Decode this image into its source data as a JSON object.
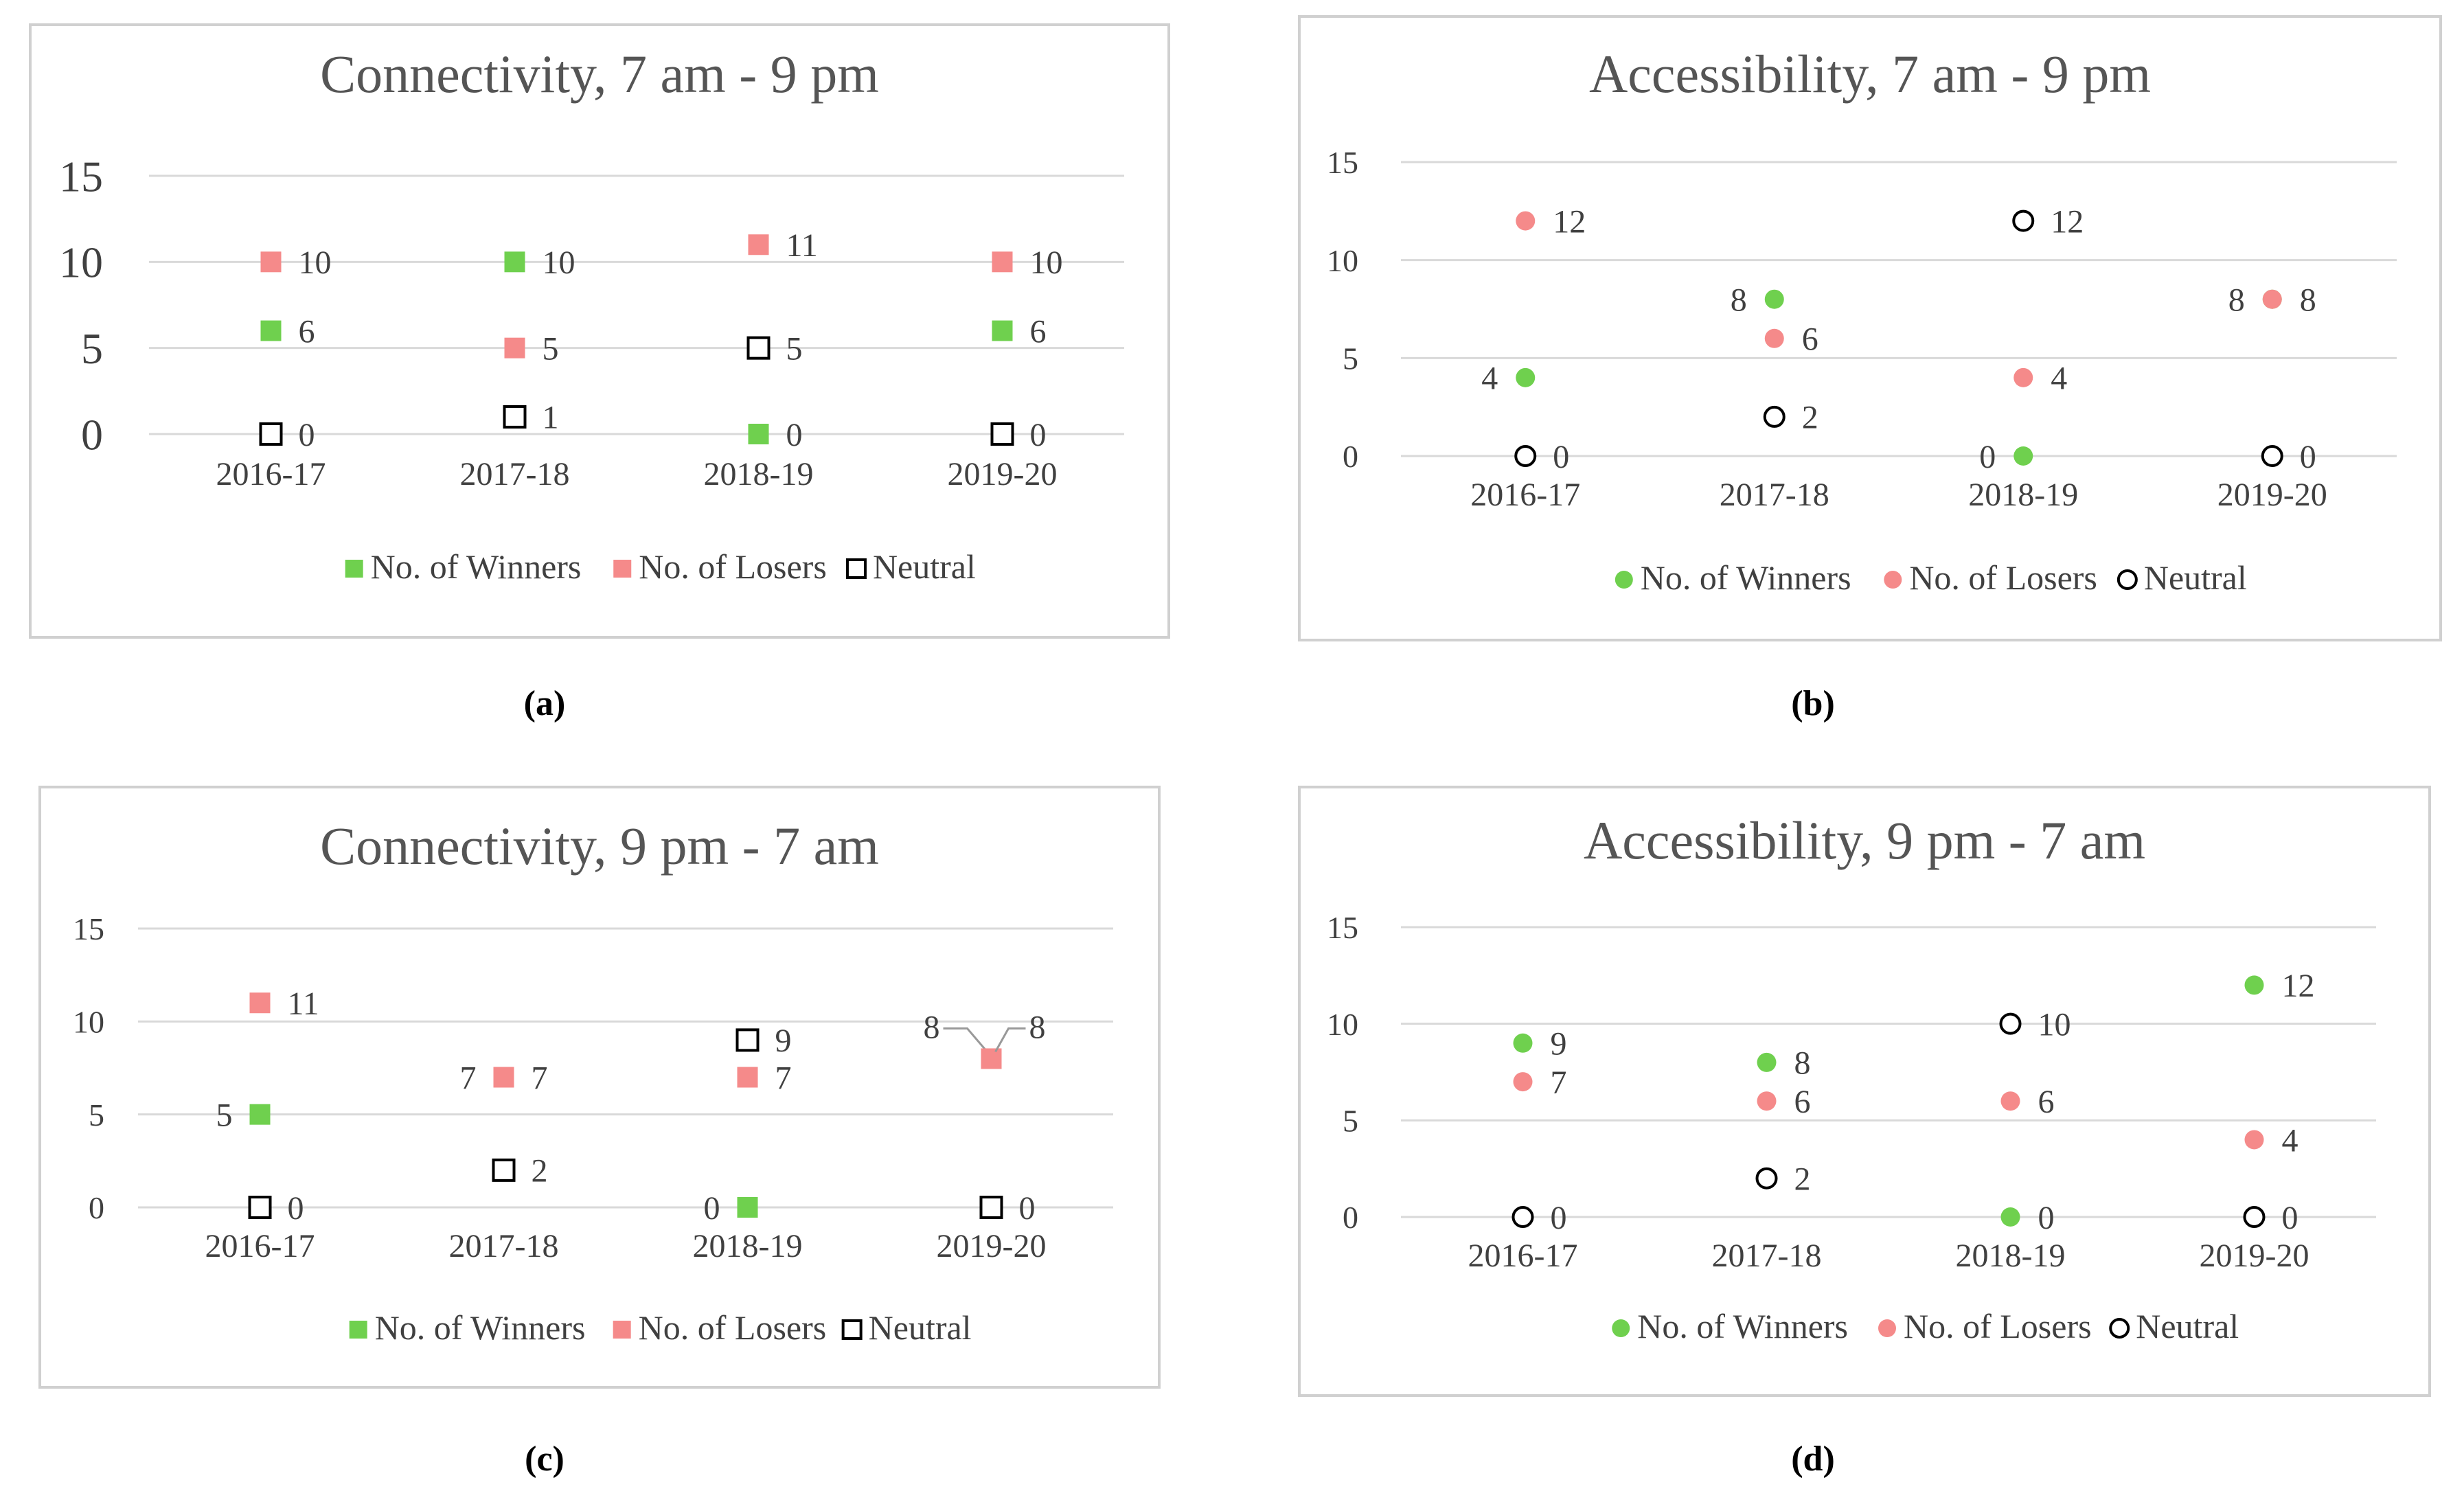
{
  "colors": {
    "winners": "#6fd04e",
    "losers": "#f58a8a",
    "neutral": "#000000",
    "grid": "#d9d9d9",
    "frame": "#d0d0d0",
    "title": "#555555",
    "text": "#404040"
  },
  "captions": [
    "(a)",
    "(b)",
    "(c)",
    "(d)"
  ],
  "chart_data": [
    {
      "type": "scatter",
      "marker": "square",
      "title": "Connectivity, 7 am - 9 pm",
      "categories": [
        "2016-17",
        "2017-18",
        "2018-19",
        "2019-20"
      ],
      "y_ticks": [
        "0",
        "5",
        "10",
        "15"
      ],
      "ylim": [
        0,
        15
      ],
      "grid": true,
      "legend_position": "bottom",
      "series": [
        {
          "name": "No. of Winners",
          "values": [
            6,
            10,
            0,
            6
          ]
        },
        {
          "name": "No. of Losers",
          "values": [
            10,
            5,
            11,
            10
          ]
        },
        {
          "name": "Neutral",
          "values": [
            0,
            1,
            5,
            0
          ]
        }
      ]
    },
    {
      "type": "scatter",
      "marker": "circle",
      "title": "Accessibility, 7 am - 9 pm",
      "categories": [
        "2016-17",
        "2017-18",
        "2018-19",
        "2019-20"
      ],
      "y_ticks": [
        "0",
        "5",
        "10",
        "15"
      ],
      "ylim": [
        0,
        15
      ],
      "grid": true,
      "legend_position": "bottom",
      "series": [
        {
          "name": "No. of Winners",
          "values": [
            4,
            8,
            0,
            8
          ]
        },
        {
          "name": "No. of Losers",
          "values": [
            12,
            6,
            4,
            8
          ]
        },
        {
          "name": "Neutral",
          "values": [
            0,
            2,
            12,
            0
          ]
        }
      ]
    },
    {
      "type": "scatter",
      "marker": "square",
      "title": "Connectivity, 9 pm - 7 am",
      "categories": [
        "2016-17",
        "2017-18",
        "2018-19",
        "2019-20"
      ],
      "y_ticks": [
        "0",
        "5",
        "10",
        "15"
      ],
      "ylim": [
        0,
        15
      ],
      "grid": true,
      "legend_position": "bottom",
      "series": [
        {
          "name": "No. of Winners",
          "values": [
            5,
            7,
            0,
            8
          ]
        },
        {
          "name": "No. of Losers",
          "values": [
            11,
            7,
            7,
            8
          ]
        },
        {
          "name": "Neutral",
          "values": [
            0,
            2,
            9,
            0
          ]
        }
      ]
    },
    {
      "type": "scatter",
      "marker": "circle",
      "title": "Accessibility, 9 pm - 7 am",
      "categories": [
        "2016-17",
        "2017-18",
        "2018-19",
        "2019-20"
      ],
      "y_ticks": [
        "0",
        "5",
        "10",
        "15"
      ],
      "ylim": [
        0,
        15
      ],
      "grid": true,
      "legend_position": "bottom",
      "series": [
        {
          "name": "No. of Winners",
          "values": [
            9,
            8,
            0,
            12
          ]
        },
        {
          "name": "No. of Losers",
          "values": [
            7,
            6,
            6,
            4
          ]
        },
        {
          "name": "Neutral",
          "values": [
            0,
            2,
            10,
            0
          ]
        }
      ]
    }
  ]
}
